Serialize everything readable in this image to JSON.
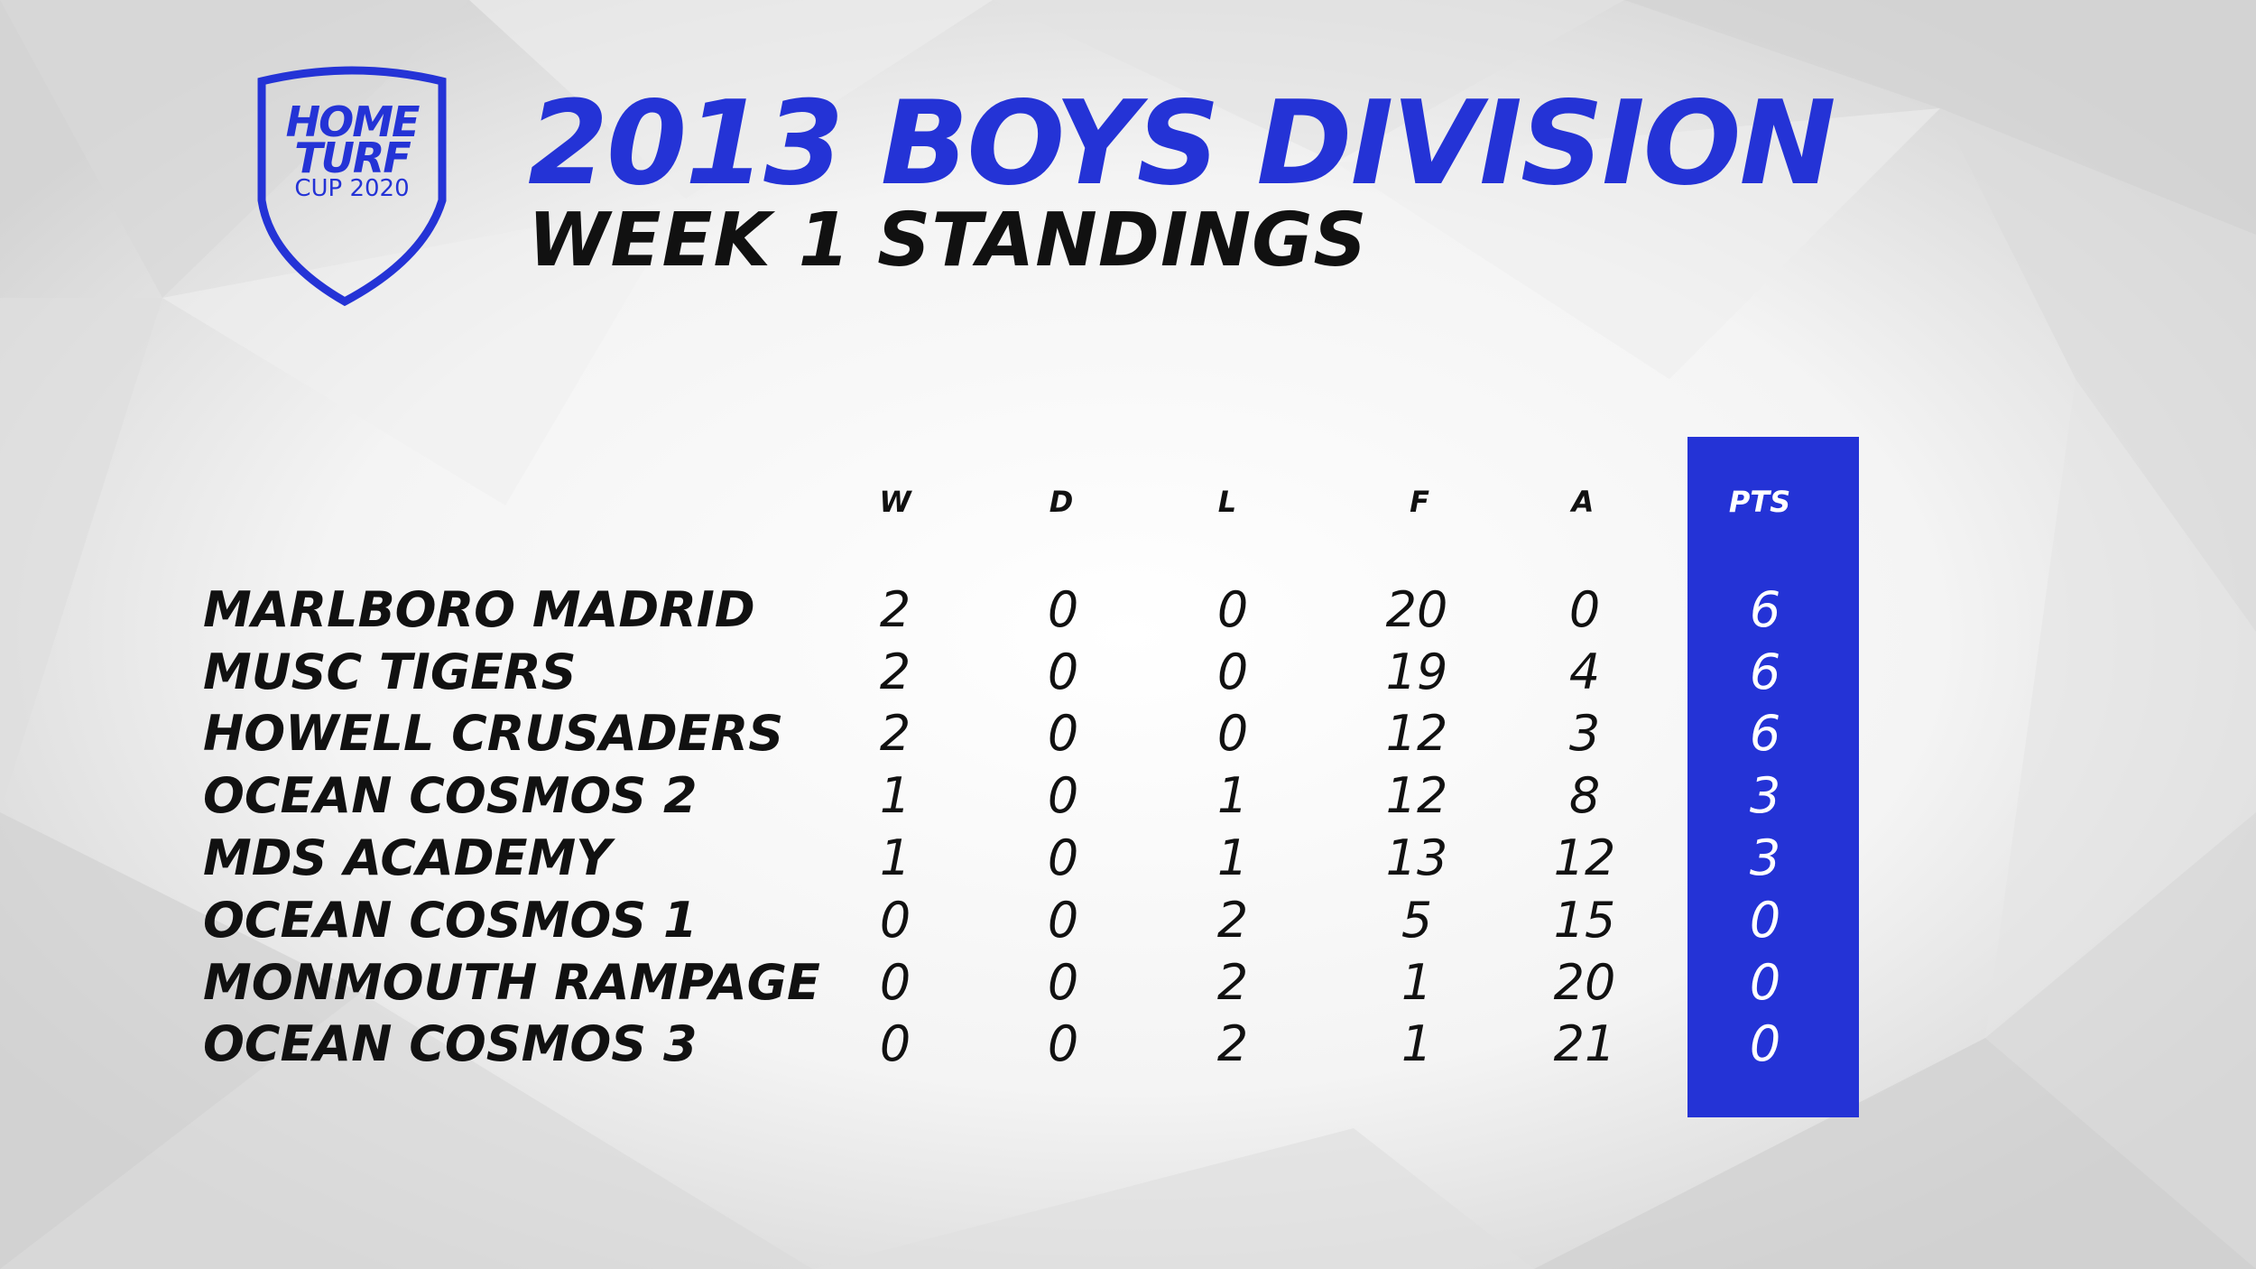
{
  "logo": {
    "line1": "HOME",
    "line2": "TURF",
    "line3": "CUP 2020",
    "color": "#2433d6"
  },
  "title": "2013 BOYS DIVISION",
  "subtitle": "WEEK 1 STANDINGS",
  "colors": {
    "accent": "#2433d6",
    "text": "#111111",
    "pts_text": "#ffffff"
  },
  "table": {
    "columns": [
      "W",
      "D",
      "L",
      "F",
      "A",
      "PTS"
    ],
    "rows": [
      {
        "team": "MARLBORO MADRID",
        "w": "2",
        "d": "0",
        "l": "0",
        "f": "20",
        "a": "0",
        "pts": "6"
      },
      {
        "team": "MUSC TIGERS",
        "w": "2",
        "d": "0",
        "l": "0",
        "f": "19",
        "a": "4",
        "pts": "6"
      },
      {
        "team": "HOWELL CRUSADERS",
        "w": "2",
        "d": "0",
        "l": "0",
        "f": "12",
        "a": "3",
        "pts": "6"
      },
      {
        "team": "OCEAN COSMOS 2",
        "w": "1",
        "d": "0",
        "l": "1",
        "f": "12",
        "a": "8",
        "pts": "3"
      },
      {
        "team": "MDS ACADEMY",
        "w": "1",
        "d": "0",
        "l": "1",
        "f": "13",
        "a": "12",
        "pts": "3"
      },
      {
        "team": "OCEAN COSMOS 1",
        "w": "0",
        "d": "0",
        "l": "2",
        "f": "5",
        "a": "15",
        "pts": "0"
      },
      {
        "team": "MONMOUTH RAMPAGE",
        "w": "0",
        "d": "0",
        "l": "2",
        "f": "1",
        "a": "20",
        "pts": "0"
      },
      {
        "team": "OCEAN COSMOS 3",
        "w": "0",
        "d": "0",
        "l": "2",
        "f": "1",
        "a": "21",
        "pts": "0"
      }
    ]
  }
}
